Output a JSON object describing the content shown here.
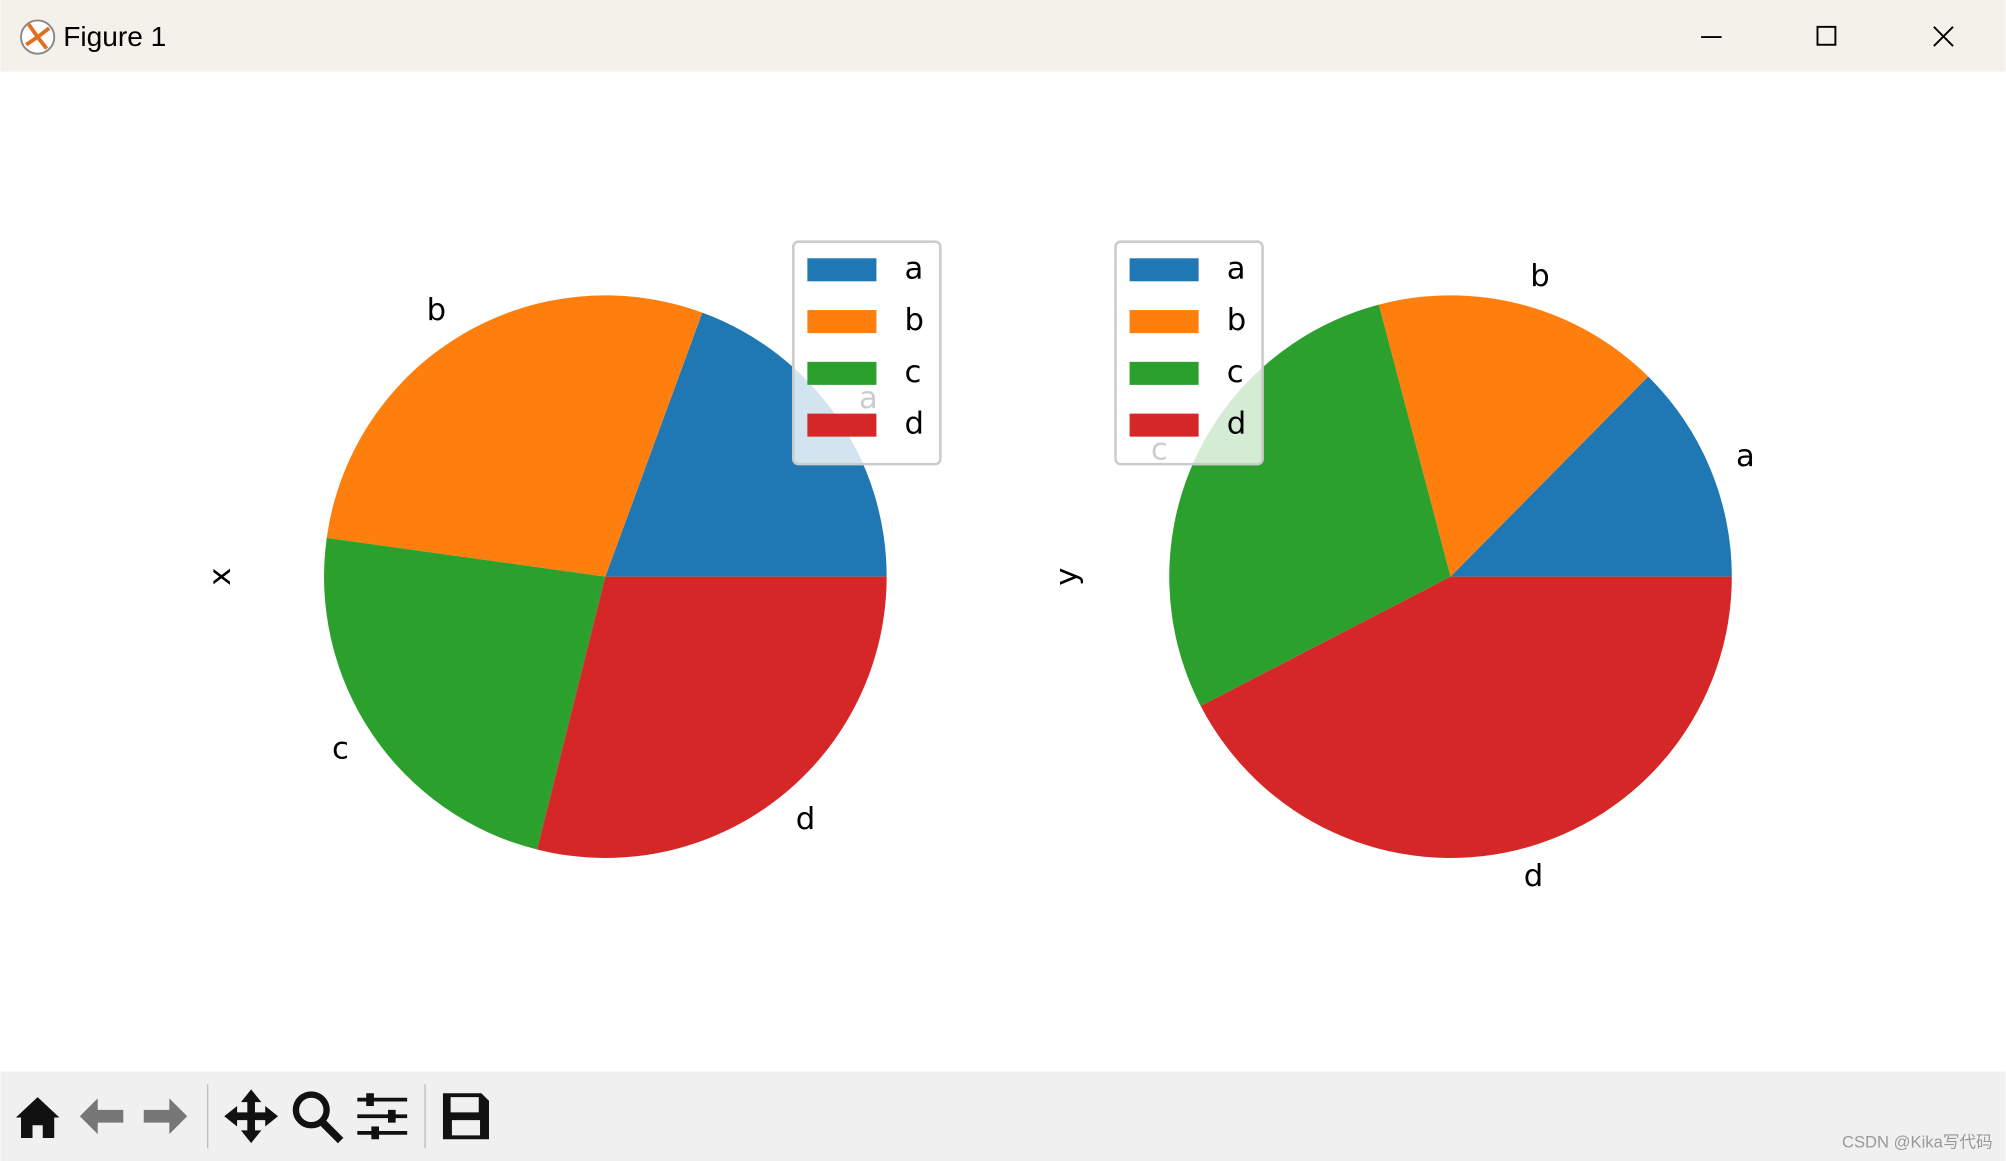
{
  "window": {
    "title": "Figure 1"
  },
  "watermark": "CSDN @Kika写代码",
  "chart_data": [
    {
      "type": "pie",
      "ylabel": "x",
      "categories": [
        "a",
        "b",
        "c",
        "d"
      ],
      "values": [
        19.4,
        28.4,
        23.3,
        28.9
      ],
      "colors": [
        "#1f77b4",
        "#ff7f0e",
        "#2ca02c",
        "#d62728"
      ],
      "legend": true
    },
    {
      "type": "pie",
      "ylabel": "y",
      "categories": [
        "a",
        "b",
        "c",
        "d"
      ],
      "values": [
        12.6,
        16.5,
        28.5,
        42.4
      ],
      "colors": [
        "#1f77b4",
        "#ff7f0e",
        "#2ca02c",
        "#d62728"
      ],
      "legend": true
    }
  ]
}
